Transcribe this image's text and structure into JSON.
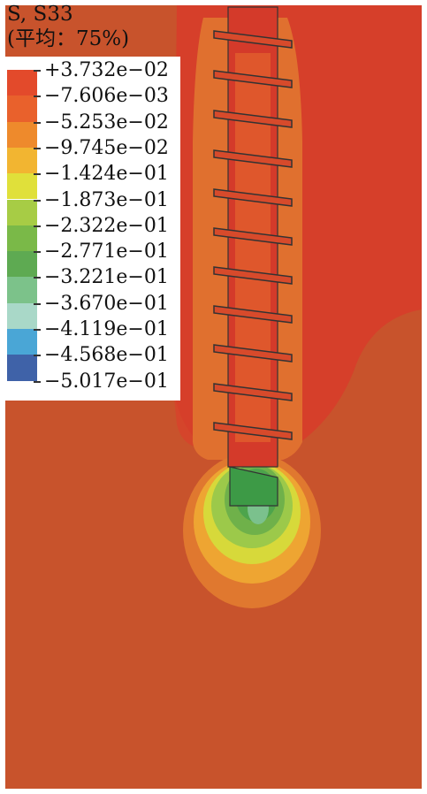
{
  "legend": {
    "variable": "S, S33",
    "averaging": "(平均：75%)",
    "labels": [
      "+3.732e−02",
      "−7.606e−03",
      "−5.253e−02",
      "−9.745e−02",
      "−1.424e−01",
      "−1.873e−01",
      "−2.322e−01",
      "−2.771e−01",
      "−3.221e−01",
      "−3.670e−01",
      "−4.119e−01",
      "−4.568e−01",
      "−5.017e−01"
    ],
    "colors": [
      "#e34a2b",
      "#e9612c",
      "#ee8a2c",
      "#f2b531",
      "#e0e03a",
      "#a7cc45",
      "#7ab948",
      "#5eaa52",
      "#7cc28a",
      "#a9d8c8",
      "#4aa6d6",
      "#3f62a8",
      "#2c3d8c"
    ]
  },
  "contour": {
    "background_color": "#c9542c",
    "rod_color": "#d83d2a",
    "core_color": "#3f9a46"
  }
}
